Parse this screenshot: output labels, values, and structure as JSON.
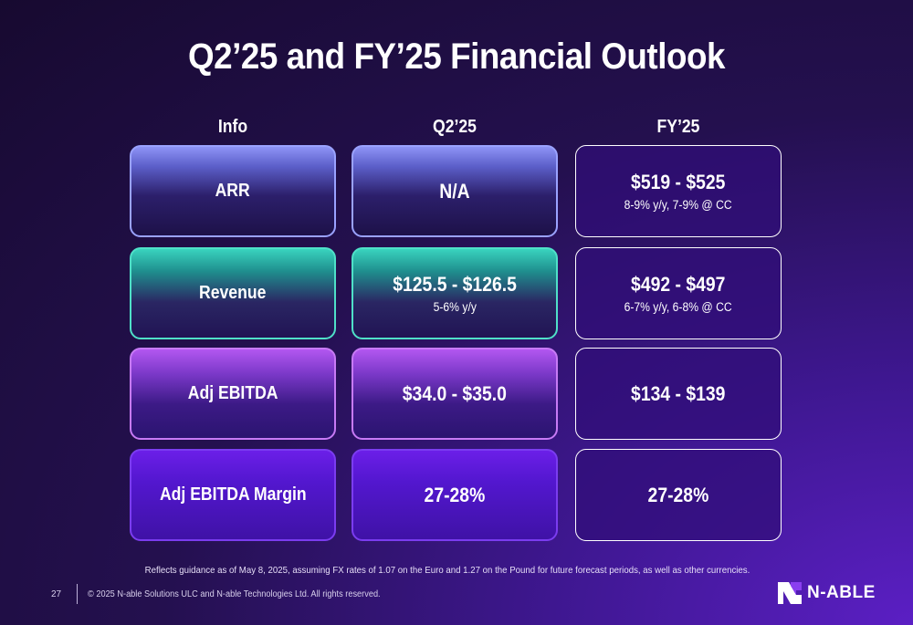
{
  "title": "Q2’25 and FY’25 Financial Outlook",
  "columns": {
    "info": "Info",
    "q2": "Q2’25",
    "fy": "FY’25"
  },
  "rows": [
    {
      "label": "ARR",
      "q2_main": "N/A",
      "q2_sub": "",
      "fy_main": "$519 - $525",
      "fy_sub": "8-9% y/y, 7-9% @ CC"
    },
    {
      "label": "Revenue",
      "q2_main": "$125.5 - $126.5",
      "q2_sub": "5-6% y/y",
      "fy_main": "$492 - $497",
      "fy_sub": "6-7% y/y, 6-8% @ CC"
    },
    {
      "label": "Adj EBITDA",
      "q2_main": "$34.0 - $35.0",
      "q2_sub": "",
      "fy_main": "$134 - $139",
      "fy_sub": ""
    },
    {
      "label": "Adj EBITDA Margin",
      "q2_main": "27-28%",
      "q2_sub": "",
      "fy_main": "27-28%",
      "fy_sub": ""
    }
  ],
  "footnote": "Reflects guidance as of May 8, 2025, assuming FX rates of 1.07 on the Euro and 1.27 on the Pound for future forecast periods, as well as other currencies.",
  "footer": {
    "page_number": "27",
    "copyright": "© 2025 N-able Solutions ULC and N-able Technologies Ltd. All rights reserved.",
    "logo_text": "N-ABLE",
    "logo_icon": "n-able-logo-icon"
  },
  "colors": {
    "arr_accent": "#8e93f6",
    "revenue_accent": "#39d3be",
    "ebitda_accent": "#b257f0",
    "margin_accent": "#6b1fe8",
    "logo_accent": "#8a3ff0"
  }
}
